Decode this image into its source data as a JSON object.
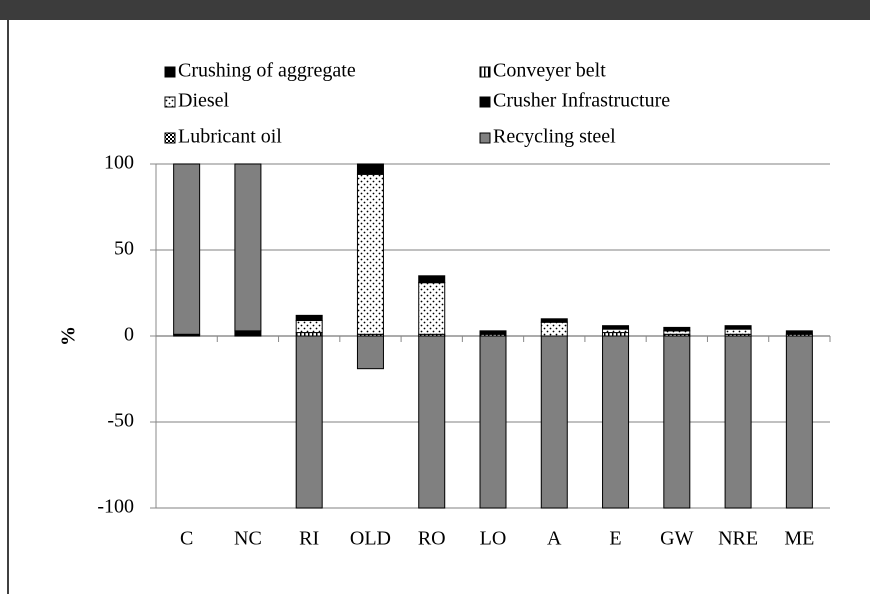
{
  "chart_data": {
    "type": "bar",
    "stacked": true,
    "ylabel": "%",
    "categories": [
      "C",
      "NC",
      "RI",
      "OLD",
      "RO",
      "LO",
      "A",
      "E",
      "GW",
      "NRE",
      "ME"
    ],
    "series": [
      {
        "name": "Crushing of aggregate",
        "color": "#000000",
        "pattern": "solid",
        "values": [
          0,
          0,
          0,
          0,
          0,
          0,
          0,
          0,
          0,
          0,
          0
        ]
      },
      {
        "name": "Conveyer belt",
        "color": "#ffffff",
        "pattern": "vertical",
        "values": [
          0,
          0,
          2,
          1,
          1,
          1,
          0,
          2,
          1,
          1,
          1
        ]
      },
      {
        "name": "Diesel",
        "color": "#ffffff",
        "pattern": "dots",
        "values": [
          0,
          0,
          7,
          93,
          30,
          0,
          8,
          2,
          2,
          3,
          0
        ]
      },
      {
        "name": "Crusher Infrastructure",
        "color": "#000000",
        "pattern": "solid",
        "values": [
          1,
          3,
          3,
          6,
          4,
          2,
          2,
          2,
          2,
          2,
          2
        ]
      },
      {
        "name": "Lubricant oil",
        "color": "#ffffff",
        "pattern": "checker",
        "values": [
          0,
          0,
          0,
          0,
          0,
          0,
          0,
          0,
          0,
          0,
          0
        ]
      },
      {
        "name": "Recycling steel",
        "color": "#808080",
        "pattern": "solid",
        "values": [
          99,
          97,
          -100,
          -19,
          -100,
          -100,
          -100,
          -100,
          -100,
          -100,
          -100
        ]
      }
    ],
    "ylim": [
      -100,
      100
    ],
    "yticks": [
      -100,
      -50,
      0,
      50,
      100
    ],
    "grid": true
  }
}
